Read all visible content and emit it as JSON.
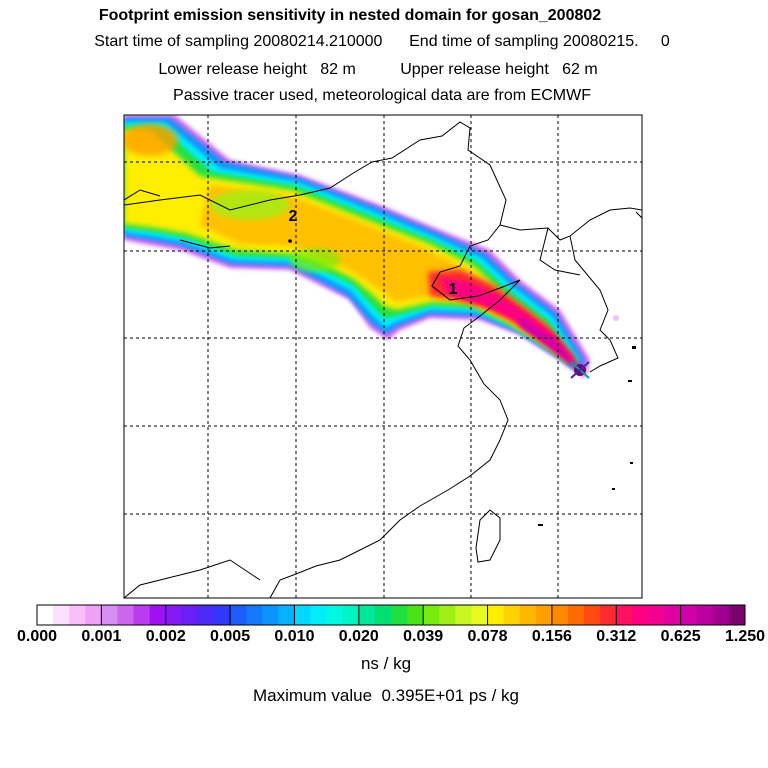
{
  "header": {
    "title": "Footprint emission sensitivity in nested domain for gosan_200802",
    "sampling": "Start time of sampling 20080214.210000      End time of sampling 20080215.     0",
    "release": "Lower release height   82 m          Upper release height   62 m",
    "tracer": "Passive tracer used, meteorological data are from ECMWF"
  },
  "map": {
    "markers": [
      {
        "label": "1"
      },
      {
        "label": "2"
      }
    ],
    "source_marker": "receptor-x-icon"
  },
  "colorbar": {
    "tick_labels": [
      "0.000",
      "0.001",
      "0.002",
      "0.005",
      "0.010",
      "0.020",
      "0.039",
      "0.078",
      "0.156",
      "0.312",
      "0.625",
      "1.250"
    ],
    "unit": "ns / kg",
    "colors": [
      "#ffffff",
      "#fde0ff",
      "#f8c0fb",
      "#f0a0f6",
      "#d88ef2",
      "#cc66ee",
      "#bb3bf0",
      "#a010f0",
      "#8818f4",
      "#6a1ff6",
      "#4c2af8",
      "#3238fa",
      "#1f5cfb",
      "#1478fc",
      "#0b94fd",
      "#04b2fe",
      "#00d8ff",
      "#00eef8",
      "#00f8e0",
      "#00f4c0",
      "#00e89a",
      "#00e070",
      "#20e040",
      "#48e418",
      "#78ec10",
      "#a0f018",
      "#c8f820",
      "#e8fa20",
      "#ffee00",
      "#ffd200",
      "#ffb800",
      "#ffa000",
      "#ff8a00",
      "#ff6a00",
      "#ff4a10",
      "#ff2a30",
      "#ff1060",
      "#ff0080",
      "#f20090",
      "#e000a0",
      "#d000a8",
      "#bc00a0",
      "#a00090",
      "#7a006e"
    ]
  },
  "max_value": "Maximum value  0.395E+01 ps / kg"
}
